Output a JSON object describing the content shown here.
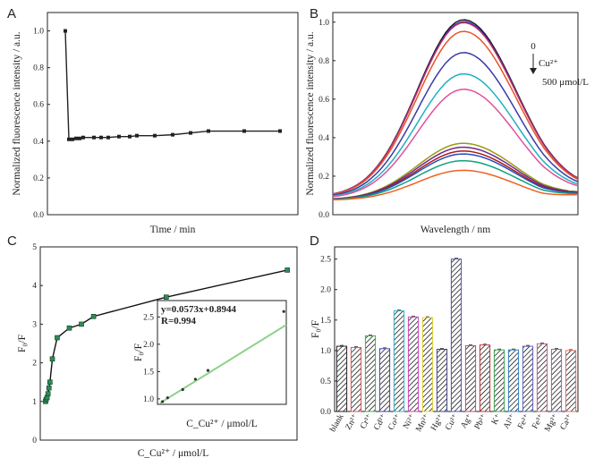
{
  "chart_data": [
    {
      "panel": "A",
      "type": "line",
      "xlabel": "Time / min",
      "ylabel": "Normalized fluorescence intensity / a.u.",
      "xlim": [
        -5,
        65
      ],
      "ylim": [
        0.0,
        1.1
      ],
      "xticks": [
        0,
        10,
        20,
        30,
        40,
        50,
        60
      ],
      "yticks": [
        "0.0",
        "0.2",
        "0.4",
        "0.6",
        "0.8",
        "1.0"
      ],
      "color": "#222222",
      "x": [
        0,
        1,
        2,
        3,
        4,
        5,
        8,
        10,
        12,
        15,
        18,
        20,
        25,
        30,
        35,
        40,
        50,
        60
      ],
      "y": [
        1.0,
        0.41,
        0.41,
        0.415,
        0.415,
        0.42,
        0.42,
        0.42,
        0.42,
        0.425,
        0.425,
        0.43,
        0.43,
        0.435,
        0.445,
        0.455,
        0.455,
        0.455
      ]
    },
    {
      "panel": "B",
      "type": "line",
      "xlabel": "Wavelength / nm",
      "ylabel": "Normalized fluorescence intensity / a.u.",
      "xlim": [
        400,
        600
      ],
      "ylim": [
        0.0,
        1.05
      ],
      "xticks": [
        400,
        450,
        500,
        550,
        600
      ],
      "yticks": [
        "0.0",
        "0.2",
        "0.4",
        "0.6",
        "0.8",
        "1.0"
      ],
      "annotation": {
        "top": "0",
        "ion": "Cu²⁺",
        "bottom": "500 μmol/L"
      },
      "series": [
        {
          "peak": 1.0,
          "color": "#1a1a1a"
        },
        {
          "peak": 0.99,
          "color": "#2a2ad0"
        },
        {
          "peak": 0.985,
          "color": "#c03060"
        },
        {
          "peak": 0.94,
          "color": "#e8532a"
        },
        {
          "peak": 0.83,
          "color": "#3a3aa8"
        },
        {
          "peak": 0.72,
          "color": "#20b0c0"
        },
        {
          "peak": 0.64,
          "color": "#e0509a"
        },
        {
          "peak": 0.36,
          "color": "#9a9a10"
        },
        {
          "peak": 0.34,
          "color": "#6a2a8a"
        },
        {
          "peak": 0.32,
          "color": "#b01818"
        },
        {
          "peak": 0.305,
          "color": "#2050c0"
        },
        {
          "peak": 0.27,
          "color": "#10a080"
        },
        {
          "peak": 0.22,
          "color": "#f06020"
        }
      ]
    },
    {
      "panel": "C",
      "type": "line",
      "xlabel": "C_Cu²⁺ / μmol/L",
      "ylabel": "F₀/F",
      "xlim": [
        -10,
        520
      ],
      "ylim": [
        0,
        5
      ],
      "xticks": [
        0,
        100,
        200,
        300,
        400,
        500
      ],
      "yticks": [
        0,
        1,
        2,
        3,
        4,
        5
      ],
      "color": "#111111",
      "marker_color": "#2e8b57",
      "x": [
        1,
        2,
        4,
        6,
        8,
        10,
        15,
        25,
        50,
        75,
        100,
        250,
        500
      ],
      "y": [
        1.0,
        1.05,
        1.1,
        1.2,
        1.35,
        1.5,
        2.1,
        2.65,
        2.9,
        3.0,
        3.2,
        3.7,
        4.4
      ],
      "inset": {
        "xlabel": "C_Cu²⁺ / μmol/L",
        "ylabel": "F₀/F",
        "xlim": [
          0,
          25.5
        ],
        "ylim": [
          0.9,
          2.8
        ],
        "xticks": [
          0,
          5,
          10,
          15,
          20,
          25
        ],
        "yticks": [
          "1.0",
          "1.5",
          "2.0",
          "2.5"
        ],
        "equation": "y=0.0573x+0.8944",
        "r": "R=0.994",
        "fit_color": "#8fd18a",
        "x": [
          1,
          2,
          5,
          7.5,
          10,
          25
        ],
        "y": [
          0.95,
          1.02,
          1.17,
          1.36,
          1.52,
          2.6
        ],
        "fit": {
          "slope": 0.0573,
          "intercept": 0.8944
        }
      }
    },
    {
      "panel": "D",
      "type": "bar",
      "ylabel": "F₀/F",
      "ylim": [
        0.0,
        2.7
      ],
      "yticks": [
        "0.0",
        "0.5",
        "1.0",
        "1.5",
        "2.0",
        "2.5"
      ],
      "categories": [
        "blank",
        "Zn²⁺",
        "Cr³⁺",
        "Cd²⁺",
        "Co²⁺",
        "Ni²⁺",
        "Mn²⁺",
        "Hg²⁺",
        "Cu²⁺",
        "Ag⁺",
        "Pb²⁺",
        "K⁺",
        "Al³⁺",
        "Fe²⁺",
        "Fe³⁺",
        "Mg²⁺",
        "Ca²⁺"
      ],
      "values": [
        1.07,
        1.05,
        1.24,
        1.03,
        1.65,
        1.55,
        1.54,
        1.02,
        2.5,
        1.08,
        1.09,
        1.01,
        1.01,
        1.07,
        1.11,
        1.02,
        1.0
      ],
      "colors": [
        "#222222",
        "#e05050",
        "#40b040",
        "#4040c0",
        "#30b0c0",
        "#d040c0",
        "#e0d030",
        "#404080",
        "#5050b0",
        "#d04080",
        "#c03030",
        "#40a050",
        "#3080c0",
        "#6060c0",
        "#c06080",
        "#9060c0",
        "#e07060"
      ]
    }
  ],
  "panel_labels": {
    "a": "A",
    "b": "B",
    "c": "C",
    "d": "D"
  }
}
